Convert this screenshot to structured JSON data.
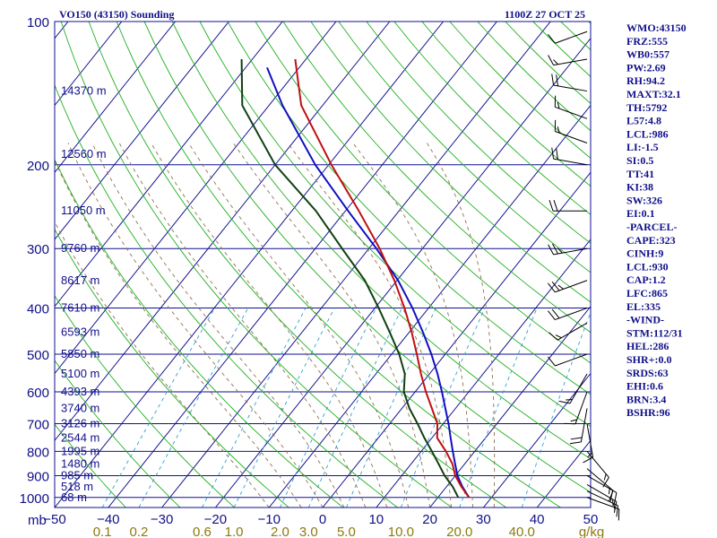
{
  "header": {
    "title": "VO150 (43150) Sounding",
    "time": "1100Z 27 OCT 25"
  },
  "indices": [
    "WMO:43150",
    "FRZ:555",
    "WB0:557",
    "PW:2.69",
    "RH:94.2",
    "MAXT:32.1",
    "TH:5792",
    "L57:4.8",
    "LCL:986",
    "LI:-1.5",
    "SI:0.5",
    "TT:41",
    "KI:38",
    "SW:326",
    "EI:0.1",
    "-PARCEL-",
    "CAPE:323",
    "CINH:9",
    "LCL:930",
    "CAP:1.2",
    "LFC:865",
    "EL:335",
    "-WIND-",
    "STM:112/31",
    "HEL:286",
    "SHR+:0.0",
    "SRDS:63",
    "EHI:0.6",
    "BRN:3.4",
    "BSHR:96"
  ],
  "colors": {
    "isobar": "#101090",
    "isotherm": "#101090",
    "dry_adiabat": "#20b020",
    "moist_adiabat": "#907050",
    "mixing_ratio": "#30a0d0",
    "temperature": "#c01010",
    "dewpoint": "#104010",
    "parcel": "#1010c0",
    "wind_barb": "#000000"
  },
  "chart_data": {
    "type": "skew-t",
    "title": "VO150 (43150) Sounding",
    "pressure_unit": "mb",
    "mixing_ratio_unit": "g/kg",
    "pressure_ticks": [
      100,
      200,
      300,
      400,
      500,
      600,
      700,
      800,
      900,
      1000
    ],
    "temperature_ticks": [
      -50,
      -40,
      -30,
      -20,
      -10,
      0,
      10,
      20,
      30,
      40,
      50
    ],
    "mixing_ratio_ticks": [
      "0.1",
      "0.2",
      "0.6",
      "1.0",
      "2.0",
      "3.0",
      "5.0",
      "10.0",
      "20.0",
      "40.0"
    ],
    "height_labels": [
      {
        "p": 140,
        "label": "14370 m"
      },
      {
        "p": 190,
        "label": "12560 m"
      },
      {
        "p": 250,
        "label": "11050 m"
      },
      {
        "p": 300,
        "label": "9760 m"
      },
      {
        "p": 350,
        "label": "8617 m"
      },
      {
        "p": 400,
        "label": "7610 m"
      },
      {
        "p": 450,
        "label": "6593 m"
      },
      {
        "p": 500,
        "label": "5850 m"
      },
      {
        "p": 550,
        "label": "5100 m"
      },
      {
        "p": 600,
        "label": "4393 m"
      },
      {
        "p": 650,
        "label": "3740 m"
      },
      {
        "p": 700,
        "label": "3126 m"
      },
      {
        "p": 750,
        "label": "2544 m"
      },
      {
        "p": 800,
        "label": "1995 m"
      },
      {
        "p": 850,
        "label": "1480 m"
      },
      {
        "p": 900,
        "label": "985 m"
      },
      {
        "p": 950,
        "label": "518 m"
      },
      {
        "p": 1000,
        "label": "68 m"
      }
    ],
    "temperature": [
      [
        1000,
        25.8
      ],
      [
        950,
        22.8
      ],
      [
        900,
        20.0
      ],
      [
        850,
        17.7
      ],
      [
        800,
        14.6
      ],
      [
        750,
        11.0
      ],
      [
        700,
        8.9
      ],
      [
        650,
        5.6
      ],
      [
        600,
        2.0
      ],
      [
        550,
        -1.6
      ],
      [
        500,
        -5.3
      ],
      [
        450,
        -9.5
      ],
      [
        400,
        -14.5
      ],
      [
        350,
        -20.5
      ],
      [
        300,
        -28.0
      ],
      [
        250,
        -37.5
      ],
      [
        200,
        -49.5
      ],
      [
        150,
        -64.0
      ],
      [
        120,
        -72.0
      ]
    ],
    "dewpoint": [
      [
        1000,
        23.8
      ],
      [
        950,
        21.2
      ],
      [
        900,
        18.0
      ],
      [
        850,
        15.1
      ],
      [
        800,
        12.0
      ],
      [
        750,
        8.6
      ],
      [
        700,
        5.2
      ],
      [
        650,
        1.4
      ],
      [
        600,
        -2.1
      ],
      [
        550,
        -4.6
      ],
      [
        500,
        -8.6
      ],
      [
        450,
        -13.6
      ],
      [
        400,
        -19.3
      ],
      [
        350,
        -26.0
      ],
      [
        300,
        -35.0
      ],
      [
        250,
        -45.5
      ],
      [
        200,
        -60.0
      ],
      [
        150,
        -75.0
      ],
      [
        120,
        -82.0
      ]
    ],
    "parcel": [
      [
        1000,
        25.8
      ],
      [
        950,
        23.0
      ],
      [
        900,
        20.4
      ],
      [
        850,
        18.2
      ],
      [
        800,
        15.9
      ],
      [
        750,
        13.5
      ],
      [
        700,
        11.0
      ],
      [
        650,
        8.1
      ],
      [
        600,
        5.0
      ],
      [
        550,
        1.5
      ],
      [
        500,
        -2.6
      ],
      [
        450,
        -7.4
      ],
      [
        400,
        -13.0
      ],
      [
        350,
        -19.8
      ],
      [
        300,
        -28.6
      ],
      [
        250,
        -39.5
      ],
      [
        200,
        -52.5
      ],
      [
        150,
        -67.5
      ],
      [
        125,
        -76.0
      ]
    ],
    "wind_barbs": [
      {
        "p": 1000,
        "dir": 110,
        "spd": 10
      },
      {
        "p": 970,
        "dir": 115,
        "spd": 15
      },
      {
        "p": 940,
        "dir": 120,
        "spd": 15
      },
      {
        "p": 900,
        "dir": 120,
        "spd": 20
      },
      {
        "p": 870,
        "dir": 130,
        "spd": 15
      },
      {
        "p": 800,
        "dir": 140,
        "spd": 15
      },
      {
        "p": 700,
        "dir": 170,
        "spd": 15
      },
      {
        "p": 650,
        "dir": 190,
        "spd": 20
      },
      {
        "p": 600,
        "dir": 200,
        "spd": 15
      },
      {
        "p": 550,
        "dir": 210,
        "spd": 15
      },
      {
        "p": 500,
        "dir": 250,
        "spd": 10
      },
      {
        "p": 430,
        "dir": 240,
        "spd": 15
      },
      {
        "p": 400,
        "dir": 250,
        "spd": 20
      },
      {
        "p": 350,
        "dir": 250,
        "spd": 25
      },
      {
        "p": 300,
        "dir": 260,
        "spd": 25
      },
      {
        "p": 250,
        "dir": 270,
        "spd": 20
      },
      {
        "p": 200,
        "dir": 280,
        "spd": 20
      },
      {
        "p": 180,
        "dir": 290,
        "spd": 15
      },
      {
        "p": 160,
        "dir": 290,
        "spd": 15
      },
      {
        "p": 140,
        "dir": 280,
        "spd": 20
      },
      {
        "p": 120,
        "dir": 260,
        "spd": 15
      },
      {
        "p": 105,
        "dir": 250,
        "spd": 10
      }
    ]
  }
}
